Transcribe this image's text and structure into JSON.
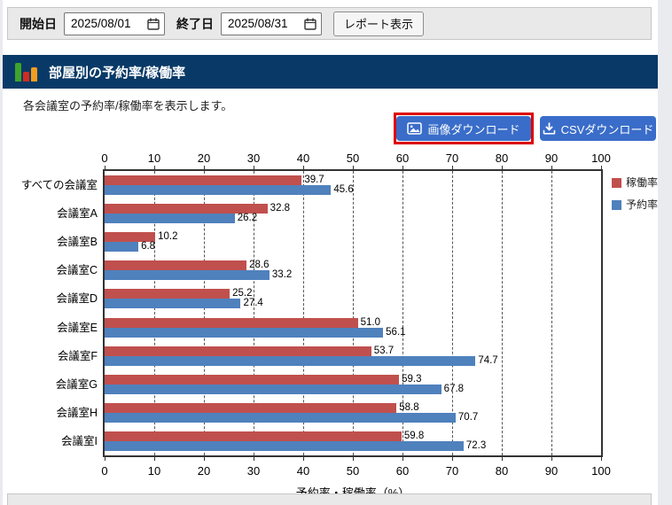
{
  "toolbar": {
    "start_label": "開始日",
    "start_value": "2025/08/01",
    "end_label": "終了日",
    "end_value": "2025/08/31",
    "report_button": "レポート表示"
  },
  "header": {
    "title": "部屋別の予約率/稼働率"
  },
  "description": "各会議室の予約率/稼働率を表示します。",
  "actions": {
    "image_download": "画像ダウンロード",
    "csv_download": "CSVダウンロード",
    "highlight_color": "#dd0000",
    "button_color": "#3a6dc9"
  },
  "chart_data": {
    "type": "bar",
    "orientation": "horizontal",
    "categories": [
      "すべての会議室",
      "会議室A",
      "会議室B",
      "会議室C",
      "会議室D",
      "会議室E",
      "会議室F",
      "会議室G",
      "会議室H",
      "会議室I"
    ],
    "series": [
      {
        "name": "稼働率",
        "color": "#c0504d",
        "values": [
          39.7,
          32.8,
          10.2,
          28.6,
          25.2,
          51.0,
          53.7,
          59.3,
          58.8,
          59.8
        ]
      },
      {
        "name": "予約率",
        "color": "#4f81bd",
        "values": [
          45.6,
          26.2,
          6.8,
          33.2,
          27.4,
          56.1,
          74.7,
          67.8,
          70.7,
          72.3
        ]
      }
    ],
    "xlabel": "予約率・稼働率（%）",
    "xlim": [
      0,
      100
    ],
    "xticks": [
      0,
      10,
      20,
      30,
      40,
      50,
      60,
      70,
      80,
      90,
      100
    ],
    "grid": "dashed-vertical",
    "axis_labels_position": "top-and-bottom",
    "legend_position": "right-top",
    "value_labels": true
  }
}
